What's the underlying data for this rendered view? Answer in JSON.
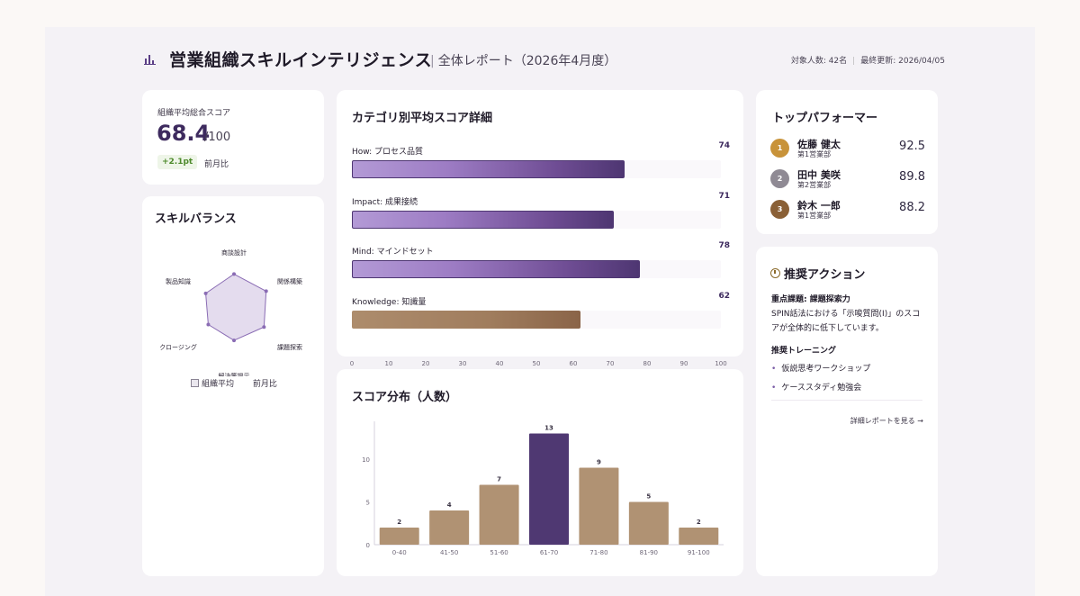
{
  "header": {
    "title": "営業組織スキルインテリジェンス",
    "subtitle": "全体レポート（2026年4月度）",
    "headcount": "対象人数: 42名",
    "updated": "最終更新: 2026/04/05"
  },
  "overall": {
    "label": "組織平均総合スコア",
    "value": "68.4",
    "max": "/100",
    "delta": "+2.1pt",
    "delta_label": "前月比"
  },
  "radar": {
    "title": "スキルバランス",
    "axes": [
      "商談設計",
      "関係構築",
      "課題探索",
      "解決策提示",
      "クロージング",
      "製品知識"
    ],
    "values": [
      72,
      75,
      70,
      62,
      60,
      66
    ],
    "legend": [
      "組織平均",
      "前月比"
    ]
  },
  "categories": {
    "title": "カテゴリ別平均スコア詳細",
    "rows": [
      {
        "label": "How: プロセス品質",
        "value": 74,
        "display": "74",
        "style": "purple"
      },
      {
        "label": "Impact: 成果接続",
        "value": 71,
        "display": "71",
        "style": "purple"
      },
      {
        "label": "Mind: マインドセット",
        "value": 78,
        "display": "78",
        "style": "purple"
      },
      {
        "label": "Knowledge: 知識量",
        "value": 62,
        "display": "62",
        "style": "brown"
      }
    ],
    "axis_ticks": [
      "0",
      "10",
      "20",
      "30",
      "40",
      "50",
      "60",
      "70",
      "80",
      "90",
      "100"
    ]
  },
  "distribution": {
    "title": "スコア分布（人数）"
  },
  "chart_data": {
    "type": "bar",
    "title": "スコア分布（人数）",
    "categories": [
      "0-40",
      "41-50",
      "51-60",
      "61-70",
      "71-80",
      "81-90",
      "91-100"
    ],
    "values": [
      2,
      4,
      7,
      13,
      9,
      5,
      2
    ],
    "ylim": [
      0,
      14
    ],
    "yticks": [
      "0",
      "5",
      "10"
    ],
    "highlight_index": 3,
    "colors": {
      "default": "#b09273",
      "highlight": "#4f3872"
    },
    "grid": false
  },
  "top_performers": {
    "title": "トップパフォーマー",
    "items": [
      {
        "rank": "1",
        "name": "佐藤 健太",
        "dept": "第1営業部",
        "score": "92.5",
        "color": "#c8933a"
      },
      {
        "rank": "2",
        "name": "田中 美咲",
        "dept": "第2営業部",
        "score": "89.8",
        "color": "#8f8a94"
      },
      {
        "rank": "3",
        "name": "鈴木 一郎",
        "dept": "第1営業部",
        "score": "88.2",
        "color": "#8a6036"
      }
    ]
  },
  "actions": {
    "title": "推奨アクション",
    "issue_heading": "重点課題: 課題探索力",
    "issue_body": "SPIN話法における「示唆質問(I)」のスコアが全体的に低下しています。",
    "training_heading": "推奨トレーニング",
    "trainings": [
      "仮説思考ワークショップ",
      "ケーススタディ勉強会"
    ],
    "link": "詳細レポートを見る →"
  }
}
